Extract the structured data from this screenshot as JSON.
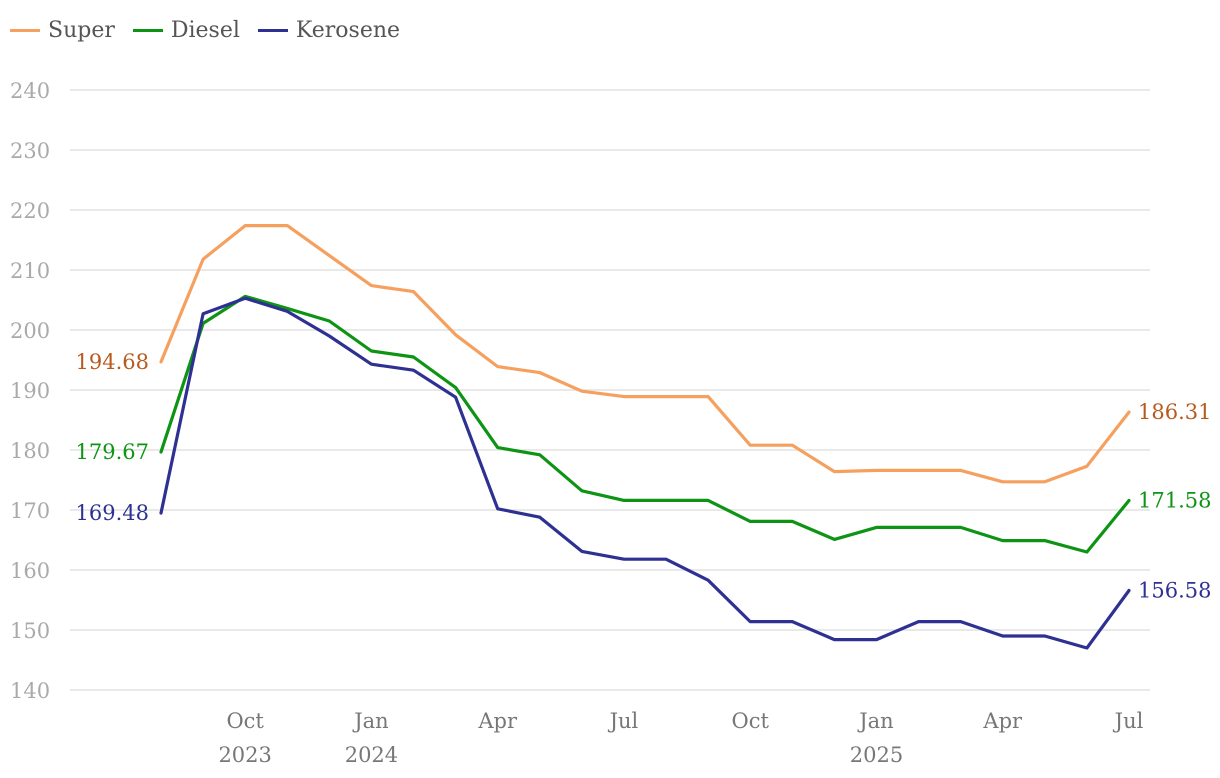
{
  "chart_data": {
    "type": "line",
    "title": "",
    "xlabel": "",
    "ylabel": "",
    "ylim": [
      140,
      240
    ],
    "yticks": [
      140,
      150,
      160,
      170,
      180,
      190,
      200,
      210,
      220,
      230,
      240
    ],
    "x_count": 24,
    "x_tick_labels": [
      {
        "index": 2,
        "month": "Oct",
        "year": "2023"
      },
      {
        "index": 5,
        "month": "Jan",
        "year": "2024"
      },
      {
        "index": 8,
        "month": "Apr",
        "year": ""
      },
      {
        "index": 11,
        "month": "Jul",
        "year": ""
      },
      {
        "index": 14,
        "month": "Oct",
        "year": ""
      },
      {
        "index": 17,
        "month": "Jan",
        "year": "2025"
      },
      {
        "index": 20,
        "month": "Apr",
        "year": ""
      },
      {
        "index": 23,
        "month": "Jul",
        "year": ""
      }
    ],
    "legend": "top-left",
    "series": [
      {
        "name": "Super",
        "color": "#f5a05e",
        "label_color": "#b85a1e",
        "values": [
          194.68,
          211.8,
          217.4,
          217.4,
          212.4,
          207.4,
          206.4,
          199.2,
          193.9,
          192.9,
          189.8,
          188.9,
          188.9,
          188.9,
          180.8,
          180.8,
          176.4,
          176.6,
          176.6,
          176.6,
          174.7,
          174.7,
          177.3,
          186.31
        ],
        "start_label": "194.68",
        "end_label": "186.31"
      },
      {
        "name": "Diesel",
        "color": "#0e9415",
        "label_color": "#0e9415",
        "values": [
          179.67,
          201.1,
          205.6,
          203.6,
          201.5,
          196.5,
          195.5,
          190.4,
          180.4,
          179.2,
          173.2,
          171.6,
          171.6,
          171.6,
          168.1,
          168.1,
          165.1,
          167.1,
          167.1,
          167.1,
          164.9,
          164.9,
          163.0,
          171.58
        ],
        "start_label": "179.67",
        "end_label": "171.58"
      },
      {
        "name": "Kerosene",
        "color": "#2e3192",
        "label_color": "#2e3192",
        "values": [
          169.48,
          202.7,
          205.3,
          203.1,
          199.0,
          194.3,
          193.3,
          188.8,
          170.2,
          168.8,
          163.1,
          161.8,
          161.8,
          158.3,
          151.4,
          151.4,
          148.4,
          148.4,
          151.4,
          151.4,
          149.0,
          149.0,
          147.0,
          156.58
        ],
        "start_label": "169.48",
        "end_label": "156.58"
      }
    ]
  }
}
